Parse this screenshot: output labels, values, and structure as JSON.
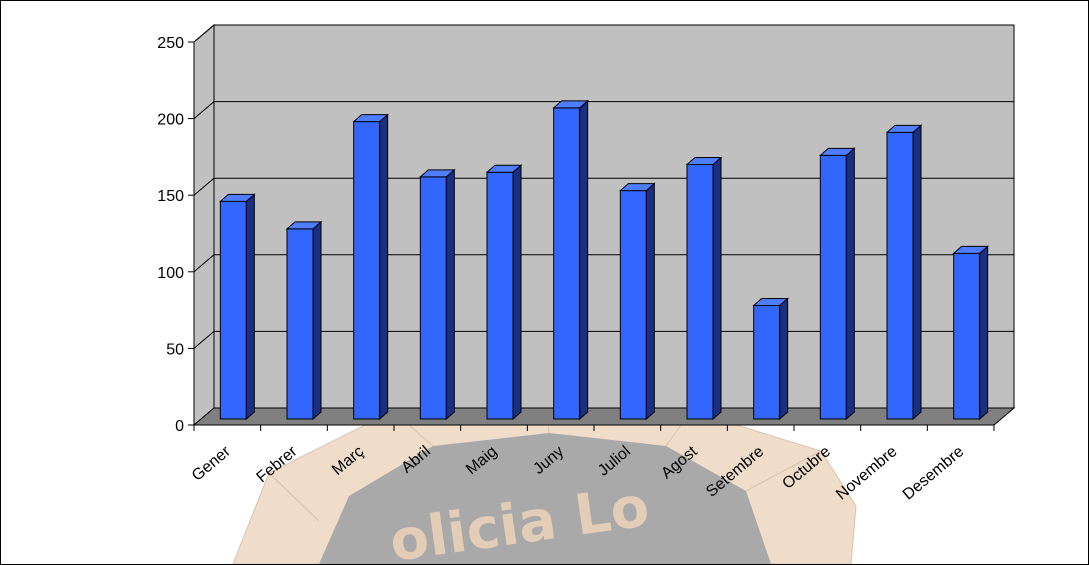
{
  "watermark": {
    "text": "olicia Lo"
  },
  "chart_data": {
    "type": "bar",
    "title": "",
    "xlabel": "",
    "ylabel": "",
    "categories": [
      "Gener",
      "Febrer",
      "Març",
      "Abril",
      "Maig",
      "Juny",
      "Juliol",
      "Agost",
      "Setembre",
      "Octubre",
      "Novembre",
      "Desembre"
    ],
    "values": [
      146,
      128,
      198,
      162,
      165,
      207,
      153,
      170,
      78,
      176,
      191,
      112
    ],
    "ylim": [
      0,
      250
    ],
    "yticks": [
      "0",
      "50",
      "100",
      "150",
      "200",
      "250"
    ],
    "grid": true,
    "legend": "none",
    "colors": {
      "bar_front": "#3366ff",
      "bar_side": "#1a2f80",
      "bar_top": "#4f7dff",
      "wall": "#c0c0c0",
      "floor": "#808080",
      "watermark_light": "#efdcc9",
      "watermark_dark": "#a9a9a9"
    }
  }
}
